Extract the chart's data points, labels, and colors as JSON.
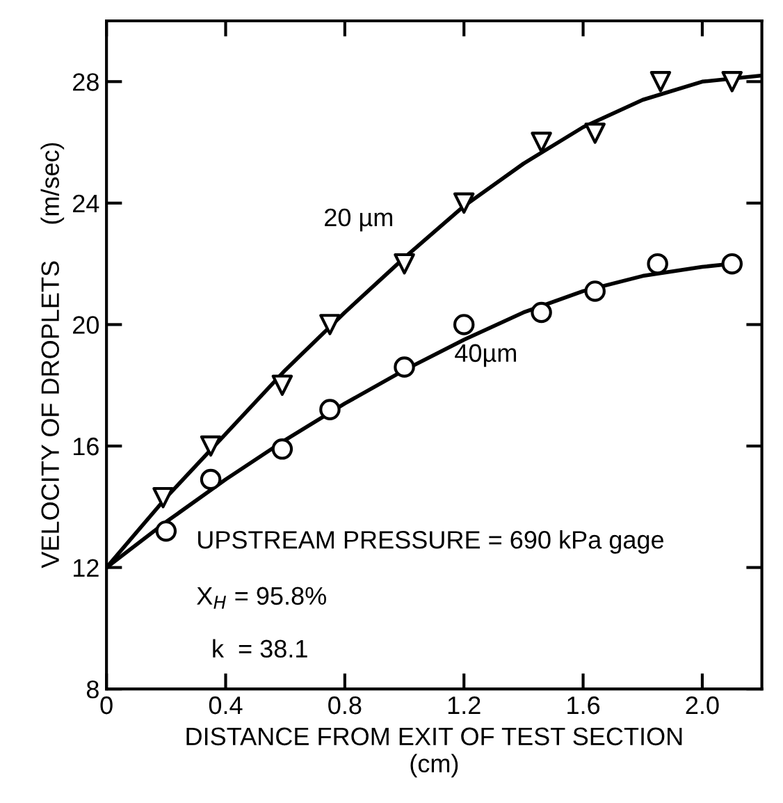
{
  "chart_data": {
    "type": "scatter",
    "xlabel": "DISTANCE FROM EXIT OF TEST SECTION\n(cm)",
    "ylabel": "VELOCITY OF DROPLETS     (m/sec)",
    "xlim": [
      0,
      2.2
    ],
    "ylim": [
      8,
      30
    ],
    "xticks": [
      0,
      0.4,
      0.8,
      1.2,
      1.6,
      {
        "value": 2.0,
        "label": "2.0"
      }
    ],
    "yticks": [
      8,
      12,
      16,
      20,
      24,
      28
    ],
    "grid": false,
    "legend": false,
    "series": [
      {
        "marker": "triangle",
        "color": "#000000",
        "x": [
          0.19,
          0.35,
          0.59,
          0.75,
          1.0,
          1.2,
          1.46,
          1.64,
          1.86,
          2.1
        ],
        "values": [
          14.3,
          16.0,
          18.0,
          20.0,
          22.0,
          24.0,
          26.0,
          26.3,
          28.0,
          28.0
        ]
      },
      {
        "marker": "circle",
        "color": "#000000",
        "x": [
          0.2,
          0.35,
          0.59,
          0.75,
          1.0,
          1.2,
          1.46,
          1.64,
          1.85,
          2.1
        ],
        "values": [
          13.2,
          14.9,
          15.9,
          17.2,
          18.6,
          20.0,
          20.4,
          21.1,
          22.0,
          22.0
        ]
      },
      {
        "type": "line",
        "name": "20 µm",
        "color": "#000000",
        "line_style": "solid",
        "x": [
          0,
          0.2,
          0.4,
          0.6,
          0.8,
          1.0,
          1.2,
          1.4,
          1.6,
          1.8,
          2.0,
          2.2
        ],
        "values": [
          12,
          14.3,
          16.4,
          18.5,
          20.4,
          22.2,
          23.9,
          25.3,
          26.5,
          27.4,
          28.0,
          28.2
        ]
      },
      {
        "type": "line",
        "name": "40µm",
        "color": "#000000",
        "line_style": "solid",
        "x": [
          0,
          0.2,
          0.4,
          0.6,
          0.8,
          1.0,
          1.2,
          1.4,
          1.6,
          1.8,
          2.0,
          2.1
        ],
        "values": [
          12,
          13.5,
          14.9,
          16.2,
          17.4,
          18.5,
          19.5,
          20.4,
          21.1,
          21.6,
          21.9,
          22.0
        ]
      }
    ],
    "annotations": [
      "UPSTREAM PRESSURE = 690 kPa gage",
      "X$_{H}$ = 95.8%",
      "k  = 38.1"
    ]
  }
}
